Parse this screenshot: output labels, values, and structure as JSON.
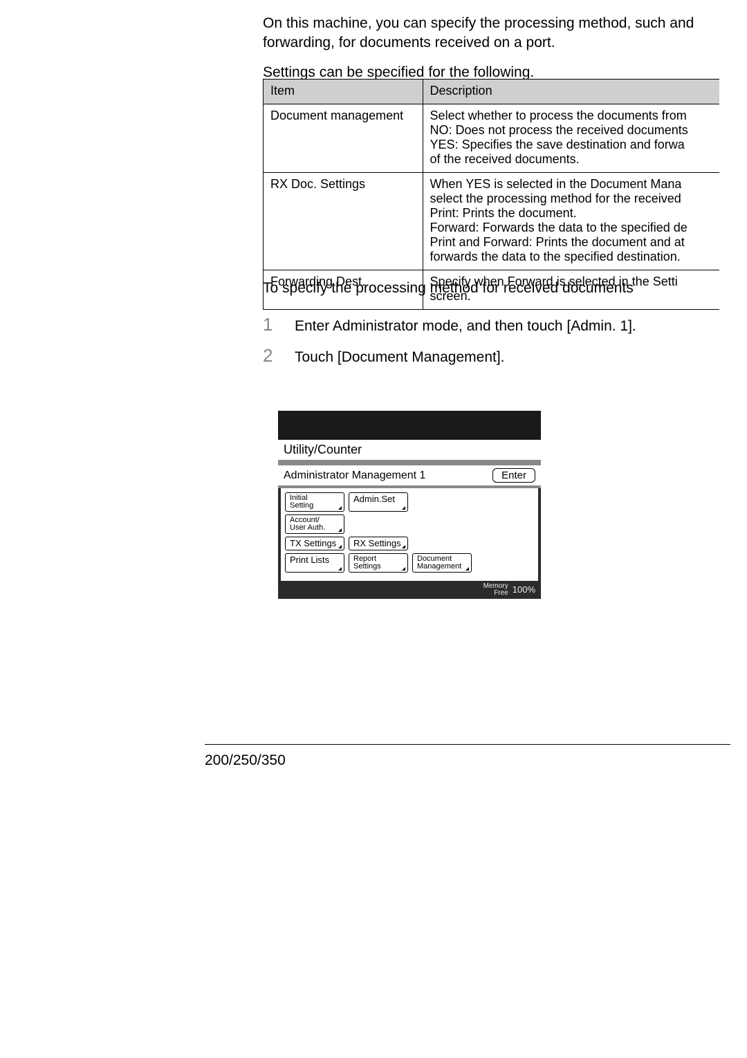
{
  "intro": {
    "p1": "On this machine, you can specify the processing method, such and forwarding, for documents received on a port.",
    "p2": "Settings can be specified for the following."
  },
  "table": {
    "header": {
      "item": "Item",
      "desc": "Description"
    },
    "rows": [
      {
        "item": "Document management",
        "desc": "Select whether to process the documents from\nNO: Does not process the received documents\nYES: Specifies the save destination and forwa\nof the received documents."
      },
      {
        "item": "RX Doc. Settings",
        "desc": "When  YES  is selected in the Document Mana\nselect the processing method for the received\nPrint: Prints the document.\nForward: Forwards the data to the specified de\nPrint and Forward: Prints the document and at\nforwards the data to the specified destination."
      },
      {
        "item": "Forwarding Dest.",
        "desc": "Specify when  Forward  is selected in the Setti\nscreen."
      }
    ]
  },
  "heading": "To specify the processing method for received documents",
  "steps": [
    {
      "n": "1",
      "text": "Enter Administrator mode, and then touch [Admin. 1]."
    },
    {
      "n": "2",
      "text": "Touch [Document Management]."
    }
  ],
  "panel": {
    "title": "Utility/Counter",
    "subtitle": "Administrator Management 1",
    "enter_label": "Enter",
    "buttons": {
      "initial_setting": "Initial\nSetting",
      "admin_set": "Admin.Set",
      "account": "Account/\nUser Auth.",
      "tx": "TX Settings",
      "rx": "RX Settings",
      "print_lists": "Print Lists",
      "report": "Report\nSettings",
      "doc_mgmt": "Document\nManagement"
    },
    "memory_label": "Memory\nFree",
    "memory_value": "100%"
  },
  "footer": "200/250/350",
  "colors": {
    "table_header_bg": "#cfcfcf",
    "panel_dark": "#2b2b2b",
    "panel_darker": "#1a1a1a",
    "step_num": "#888888"
  }
}
